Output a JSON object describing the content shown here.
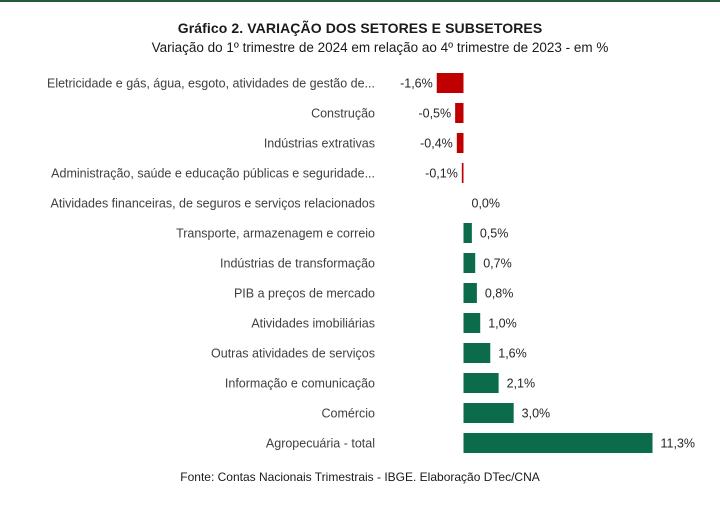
{
  "title": "Gráfico 2. VARIAÇÃO DOS SETORES E SUBSETORES",
  "subtitle": "Variação do 1º trimestre de 2024 em relação ao 4º trimestre de 2023 - em %",
  "source": "Fonte: Contas Nacionais Trimestrais - IBGE. Elaboração DTec/CNA",
  "colors": {
    "negative": "#c00000",
    "positive": "#0b6b4a",
    "top_rule": "#1e5a3c"
  },
  "chart_data": {
    "type": "bar",
    "orientation": "horizontal",
    "title": "Gráfico 2. VARIAÇÃO DOS SETORES E SUBSETORES",
    "subtitle": "Variação do 1º trimestre de 2024 em relação ao 4º trimestre de 2023 - em %",
    "categories": [
      "Eletricidade e gás, água, esgoto, atividades de gestão de...",
      "Construção",
      "Indústrias extrativas",
      "Administração, saúde e educação públicas e seguridade...",
      "Atividades financeiras, de seguros e serviços relacionados",
      "Transporte, armazenagem e correio",
      "Indústrias de transformação",
      "PIB a preços de mercado",
      "Atividades imobiliárias",
      "Outras atividades de serviços",
      "Informação e comunicação",
      "Comércio",
      "Agropecuária - total"
    ],
    "values": [
      -1.6,
      -0.5,
      -0.4,
      -0.1,
      0.0,
      0.5,
      0.7,
      0.8,
      1.0,
      1.6,
      2.1,
      3.0,
      11.3
    ],
    "value_labels": [
      "-1,6%",
      "-0,5%",
      "-0,4%",
      "-0,1%",
      "0,0%",
      "0,5%",
      "0,7%",
      "0,8%",
      "1,0%",
      "1,6%",
      "2,1%",
      "3,0%",
      "11,3%"
    ],
    "xlim": [
      -1.6,
      11.3
    ],
    "grid": false,
    "legend": "none"
  }
}
